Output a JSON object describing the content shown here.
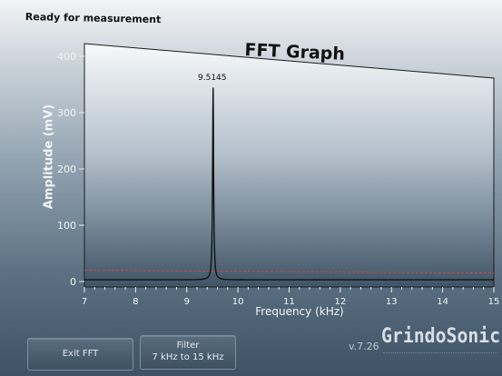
{
  "status": "Ready for measurement",
  "chart_data": {
    "type": "line",
    "title": "FFT Graph",
    "xlabel": "Frequency (kHz)",
    "ylabel": "Amplitude (mV)",
    "xlim": [
      7,
      15
    ],
    "ylim": [
      0,
      400
    ],
    "xticks": [
      7,
      8,
      9,
      10,
      11,
      12,
      13,
      14,
      15
    ],
    "yticks": [
      0,
      100,
      200,
      300,
      400
    ],
    "grid": false,
    "peak": {
      "x": 9.5145,
      "y": 345,
      "label": "9.5145"
    },
    "threshold": {
      "y": 20,
      "color": "#d2473f"
    },
    "baseline": 3,
    "line_color": "#111111"
  },
  "buttons": {
    "exit": "Exit FFT",
    "filter_title": "Filter",
    "filter_range": "7 kHz to 15 kHz"
  },
  "version": "v.7.26",
  "brand": "GrindoSonic"
}
